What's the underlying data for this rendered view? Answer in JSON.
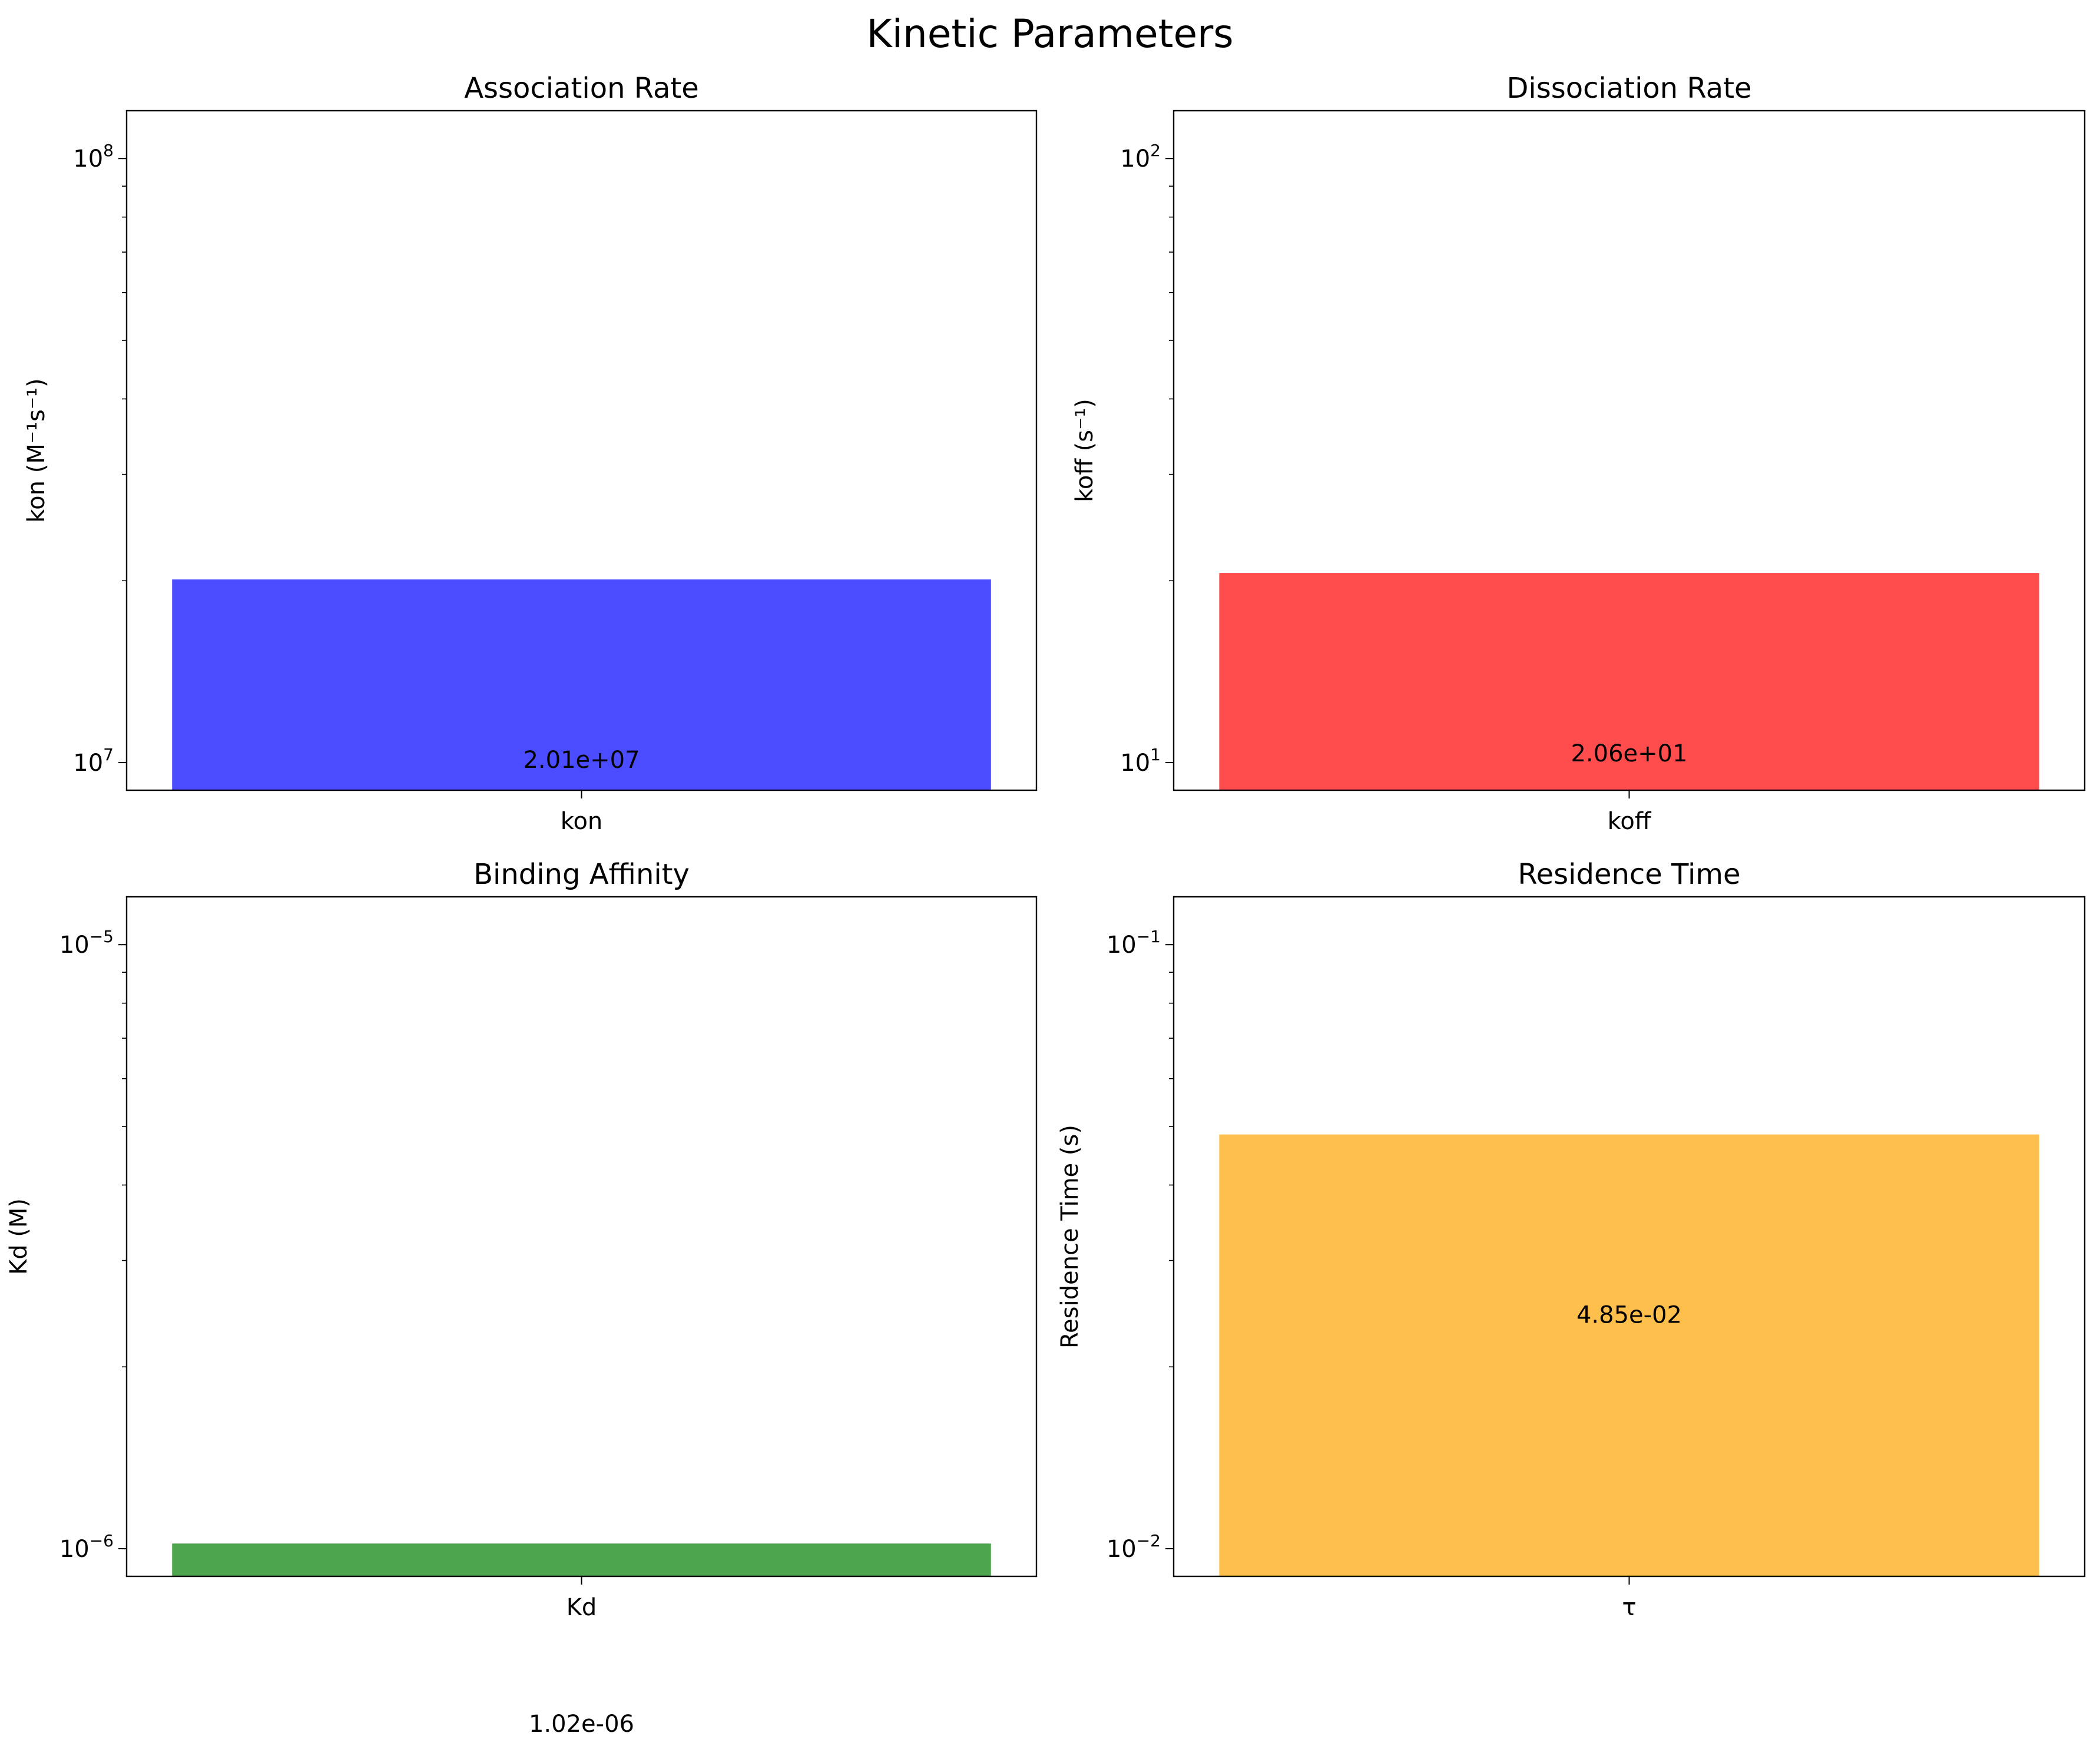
{
  "figure": {
    "title": "Kinetic Parameters"
  },
  "chart_data": [
    {
      "type": "bar",
      "title": "Association Rate",
      "categories": [
        "kon"
      ],
      "values": [
        20100000
      ],
      "value_labels": [
        "2.01e+07"
      ],
      "ylabel": "kon (M⁻¹s⁻¹)",
      "xlabel": "",
      "yscale": "log",
      "ylim": [
        9000000,
        120000000
      ],
      "yticks": [
        {
          "value": 10000000,
          "base": "10",
          "exp": "7"
        },
        {
          "value": 100000000,
          "base": "10",
          "exp": "8"
        }
      ],
      "color": "#4b4bff",
      "grid": false
    },
    {
      "type": "bar",
      "title": "Dissociation Rate",
      "categories": [
        "koff"
      ],
      "values": [
        20.6
      ],
      "value_labels": [
        "2.06e+01"
      ],
      "ylabel": "koff (s⁻¹)",
      "xlabel": "",
      "yscale": "log",
      "ylim": [
        9,
        120
      ],
      "yticks": [
        {
          "value": 10,
          "base": "10",
          "exp": "1"
        },
        {
          "value": 100,
          "base": "10",
          "exp": "2"
        }
      ],
      "color": "#ff4d4d",
      "grid": false
    },
    {
      "type": "bar",
      "title": "Binding Affinity",
      "categories": [
        "Kd"
      ],
      "values": [
        1.02e-06
      ],
      "value_labels": [
        "1.02e-06"
      ],
      "ylabel": "Kd (M)",
      "xlabel": "",
      "yscale": "log",
      "ylim": [
        9e-07,
        1.2e-05
      ],
      "yticks": [
        {
          "value": 1e-06,
          "base": "10",
          "exp": "−6"
        },
        {
          "value": 1e-05,
          "base": "10",
          "exp": "−5"
        }
      ],
      "color": "#4da64d",
      "grid": false
    },
    {
      "type": "bar",
      "title": "Residence Time",
      "categories": [
        "τ"
      ],
      "values": [
        0.0485
      ],
      "value_labels": [
        "4.85e-02"
      ],
      "ylabel": "Residence Time (s)",
      "xlabel": "",
      "yscale": "log",
      "ylim": [
        0.009,
        0.12
      ],
      "yticks": [
        {
          "value": 0.01,
          "base": "10",
          "exp": "−2"
        },
        {
          "value": 0.1,
          "base": "10",
          "exp": "−1"
        }
      ],
      "color": "#ffbf4d",
      "grid": false
    }
  ]
}
